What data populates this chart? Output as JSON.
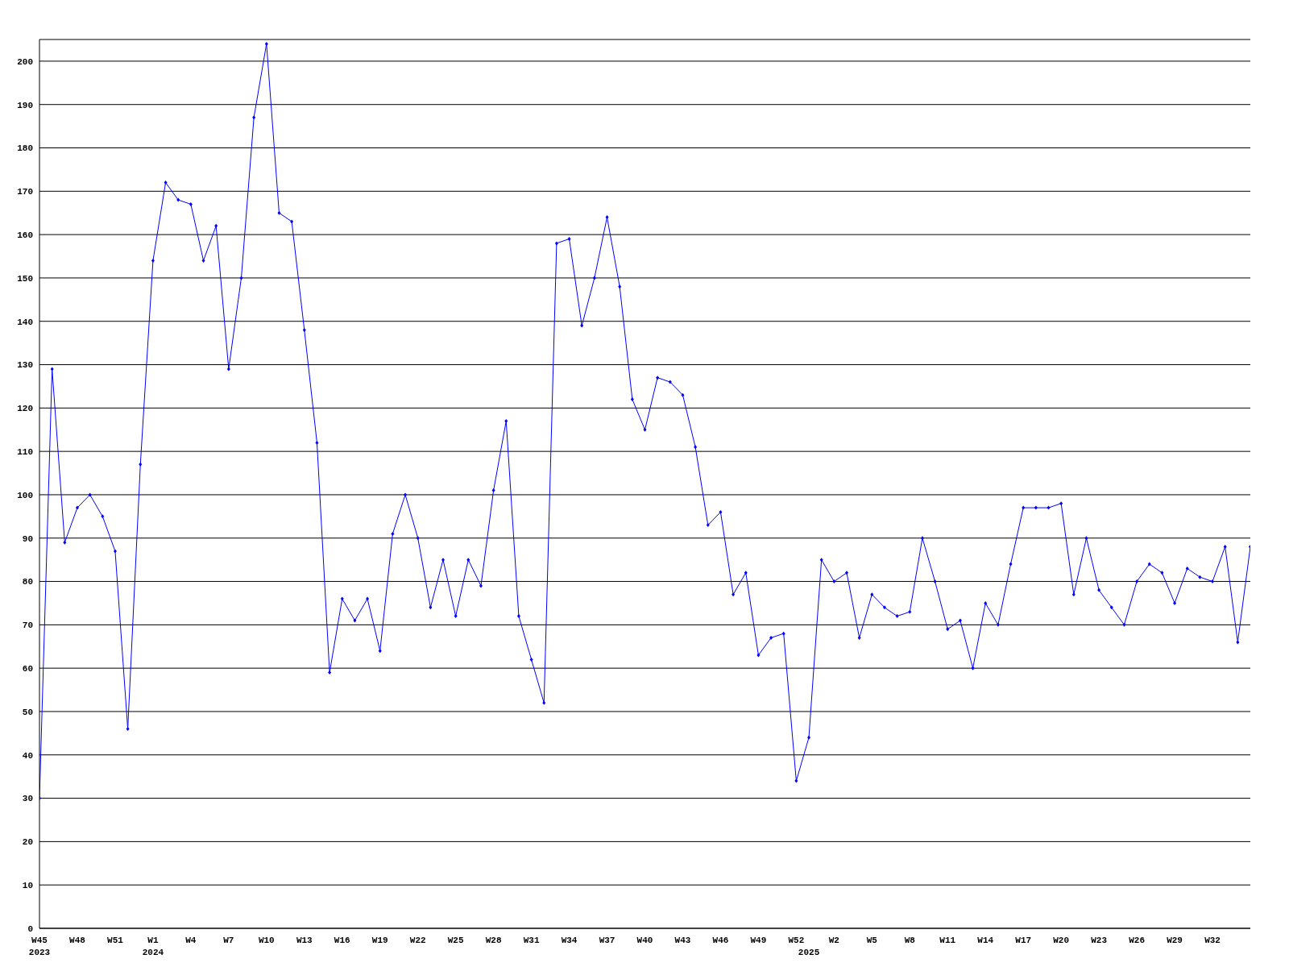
{
  "chart_data": {
    "type": "line",
    "categories": [
      "W45\n2023",
      null,
      null,
      "W48",
      null,
      null,
      "W51",
      null,
      null,
      "W1\n2024",
      null,
      null,
      "W4",
      null,
      null,
      "W7",
      null,
      null,
      "W10",
      null,
      null,
      "W13",
      null,
      null,
      "W16",
      null,
      null,
      "W19",
      null,
      null,
      "W22",
      null,
      null,
      "W25",
      null,
      null,
      "W28",
      null,
      null,
      "W31",
      null,
      null,
      "W34",
      null,
      null,
      "W37",
      null,
      null,
      "W40",
      null,
      null,
      "W43",
      null,
      null,
      "W46",
      null,
      null,
      "W49",
      null,
      null,
      "W52",
      "\n2025",
      null,
      "W2",
      null,
      null,
      "W5",
      null,
      null,
      "W8",
      null,
      null,
      "W11",
      null,
      null,
      "W14",
      null,
      null,
      "W17",
      null,
      null,
      "W20",
      null,
      null,
      "W23",
      null,
      null,
      "W26",
      null,
      null,
      "W29",
      null,
      null,
      "W32",
      null,
      null,
      null
    ],
    "series": [
      {
        "color": "#0000ff",
        "values": [
          30,
          129,
          89,
          97,
          100,
          95,
          87,
          46,
          107,
          154,
          172,
          168,
          167,
          154,
          162,
          129,
          150,
          187,
          204,
          165,
          163,
          138,
          112,
          59,
          76,
          71,
          76,
          64,
          91,
          100,
          90,
          74,
          85,
          72,
          85,
          79,
          101,
          117,
          72,
          62,
          52,
          158,
          159,
          139,
          150,
          164,
          148,
          122,
          115,
          127,
          126,
          123,
          111,
          93,
          96,
          77,
          82,
          63,
          67,
          68,
          34,
          44,
          85,
          80,
          82,
          67,
          77,
          74,
          72,
          73,
          90,
          80,
          69,
          71,
          60,
          75,
          70,
          84,
          97,
          97,
          97,
          98,
          77,
          90,
          78,
          74,
          70,
          80,
          84,
          82,
          75,
          83,
          81,
          80,
          88,
          66,
          88
        ]
      }
    ],
    "ylim": [
      0,
      205
    ],
    "yticks": [
      0,
      10,
      20,
      30,
      40,
      50,
      60,
      70,
      80,
      90,
      100,
      110,
      120,
      130,
      140,
      150,
      160,
      170,
      180,
      190,
      200
    ],
    "grid": "y",
    "marker": "diamond",
    "line_style": "solid"
  }
}
